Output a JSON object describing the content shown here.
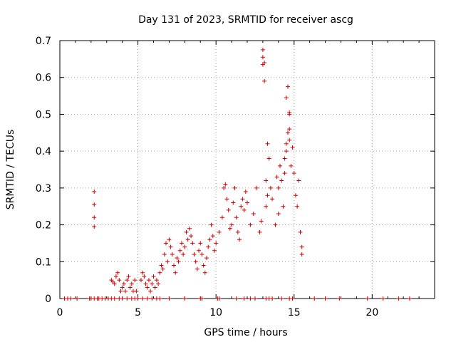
{
  "chart_data": {
    "type": "scatter",
    "title": "Day 131 of 2023, SRMTID for receiver ascg",
    "xlabel": "GPS time / hours",
    "ylabel": "SRMTID / TECUs",
    "xlim": [
      0,
      24
    ],
    "ylim": [
      0,
      0.7
    ],
    "xticks": [
      0,
      5,
      10,
      15,
      20
    ],
    "yticks": [
      0,
      0.1,
      0.2,
      0.3,
      0.4,
      0.5,
      0.6,
      0.7
    ],
    "xtick_labels": [
      "0",
      "5",
      "10",
      "15",
      "20"
    ],
    "ytick_labels": [
      "0",
      "0.1",
      "0.2",
      "0.3",
      "0.4",
      "0.5",
      "0.6",
      "0.7"
    ],
    "grid": true,
    "marker": "+",
    "color": "#d00000",
    "series": [
      {
        "name": "SRMTID",
        "x": [
          0.3,
          0.5,
          0.7,
          1.1,
          1.9,
          2.0,
          2.2,
          2.4,
          2.5,
          2.7,
          2.9,
          3.1,
          3.3,
          3.5,
          3.8,
          4.0,
          4.3,
          4.6,
          4.8,
          5.0,
          5.3,
          5.6,
          5.9,
          6.2,
          6.4,
          7.0,
          8.0,
          9.0,
          9.1,
          10.1,
          10.2,
          11.3,
          11.8,
          12.2,
          12.5,
          13.2,
          13.4,
          13.6,
          14.2,
          14.7,
          14.9,
          16.3,
          17.0,
          17.9,
          19.7,
          20.7,
          21.7,
          22.4,
          2.2,
          2.2,
          2.2,
          2.2,
          3.3,
          3.4,
          3.5,
          3.6,
          3.7,
          3.8,
          3.9,
          4.0,
          4.1,
          4.2,
          4.3,
          4.4,
          4.5,
          4.6,
          4.7,
          4.8,
          4.9,
          5.2,
          5.3,
          5.4,
          5.5,
          5.6,
          5.7,
          5.8,
          5.9,
          6.0,
          6.1,
          6.2,
          6.3,
          6.4,
          6.5,
          6.6,
          6.7,
          6.8,
          6.9,
          7.0,
          7.1,
          7.2,
          7.3,
          7.4,
          7.5,
          7.6,
          7.7,
          7.8,
          7.9,
          8.0,
          8.1,
          8.2,
          8.3,
          8.4,
          8.5,
          8.6,
          8.7,
          8.8,
          8.9,
          9.0,
          9.1,
          9.2,
          9.3,
          9.4,
          9.5,
          9.6,
          9.7,
          9.8,
          9.9,
          10.0,
          10.2,
          10.4,
          10.5,
          10.6,
          10.7,
          10.8,
          10.9,
          11.0,
          11.1,
          11.2,
          11.3,
          11.4,
          11.5,
          11.6,
          11.7,
          11.8,
          11.9,
          12.0,
          12.2,
          12.4,
          12.6,
          12.8,
          12.9,
          13.0,
          13.0,
          13.0,
          13.1,
          13.1,
          13.2,
          13.2,
          13.3,
          13.3,
          13.4,
          13.5,
          13.6,
          13.8,
          13.9,
          14.0,
          14.0,
          14.1,
          14.2,
          14.3,
          14.4,
          14.5,
          14.6,
          14.7,
          14.7,
          14.8,
          14.9,
          15.0,
          15.1,
          15.2,
          15.3,
          15.4,
          15.5,
          15.5,
          14.5,
          14.6,
          14.7,
          14.7,
          14.5,
          14.4
        ],
        "y": [
          0,
          0,
          0,
          0,
          0,
          0,
          0,
          0,
          0,
          0,
          0,
          0,
          0,
          0,
          0,
          0,
          0,
          0,
          0,
          0,
          0,
          0,
          0,
          0,
          0,
          0,
          0,
          0,
          0,
          0,
          0,
          0,
          0,
          0,
          0,
          0,
          0,
          0,
          0,
          0,
          0,
          0,
          0,
          0,
          0,
          0,
          0,
          0,
          0.29,
          0.255,
          0.22,
          0.195,
          0.05,
          0.045,
          0.04,
          0.06,
          0.07,
          0.05,
          0.02,
          0.03,
          0.04,
          0.02,
          0.05,
          0.06,
          0.03,
          0.04,
          0.02,
          0.05,
          0.02,
          0.05,
          0.07,
          0.06,
          0.04,
          0.03,
          0.05,
          0.02,
          0.04,
          0.06,
          0.03,
          0.05,
          0.04,
          0.07,
          0.09,
          0.08,
          0.12,
          0.15,
          0.1,
          0.16,
          0.14,
          0.12,
          0.09,
          0.07,
          0.11,
          0.1,
          0.13,
          0.15,
          0.12,
          0.14,
          0.18,
          0.16,
          0.19,
          0.17,
          0.15,
          0.12,
          0.1,
          0.08,
          0.13,
          0.15,
          0.12,
          0.09,
          0.07,
          0.11,
          0.14,
          0.16,
          0.2,
          0.17,
          0.13,
          0.15,
          0.18,
          0.22,
          0.3,
          0.31,
          0.27,
          0.24,
          0.19,
          0.2,
          0.26,
          0.3,
          0.22,
          0.18,
          0.16,
          0.25,
          0.27,
          0.24,
          0.29,
          0.26,
          0.2,
          0.23,
          0.3,
          0.18,
          0.21,
          0.675,
          0.655,
          0.635,
          0.64,
          0.59,
          0.25,
          0.32,
          0.28,
          0.42,
          0.38,
          0.3,
          0.27,
          0.2,
          0.33,
          0.23,
          0.3,
          0.36,
          0.32,
          0.25,
          0.34,
          0.4,
          0.45,
          0.5,
          0.43,
          0.36,
          0.41,
          0.34,
          0.28,
          0.25,
          0.32,
          0.18,
          0.14,
          0.12,
          0.545,
          0.575,
          0.505,
          0.46,
          0.42,
          0.38
        ]
      }
    ]
  }
}
